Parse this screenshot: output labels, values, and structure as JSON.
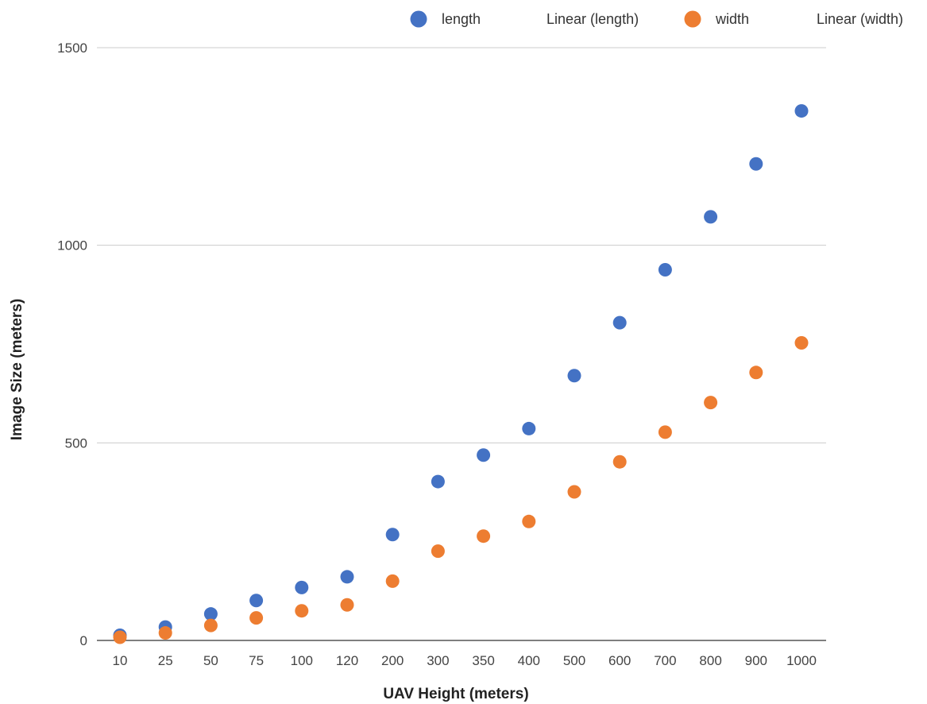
{
  "chart_data": {
    "type": "scatter",
    "xlabel": "UAV Height (meters)",
    "ylabel": "Image Size (meters)",
    "categories": [
      "10",
      "25",
      "50",
      "75",
      "100",
      "120",
      "200",
      "300",
      "350",
      "400",
      "500",
      "600",
      "700",
      "800",
      "900",
      "1000"
    ],
    "ylim": [
      0,
      1500
    ],
    "yticks": [
      0,
      500,
      1000,
      1500
    ],
    "grid": true,
    "legend_position": "top",
    "legend": [
      "length",
      "Linear (length)",
      "width",
      "Linear (width)"
    ],
    "series": [
      {
        "name": "length",
        "color": "#4472C4",
        "values": [
          13,
          34,
          67,
          101,
          134,
          161,
          268,
          402,
          469,
          536,
          670,
          804,
          938,
          1072,
          1206,
          1340
        ]
      },
      {
        "name": "width",
        "color": "#ED7D31",
        "values": [
          8,
          19,
          38,
          57,
          75,
          90,
          150,
          226,
          264,
          301,
          376,
          452,
          527,
          602,
          678,
          753
        ]
      }
    ]
  }
}
